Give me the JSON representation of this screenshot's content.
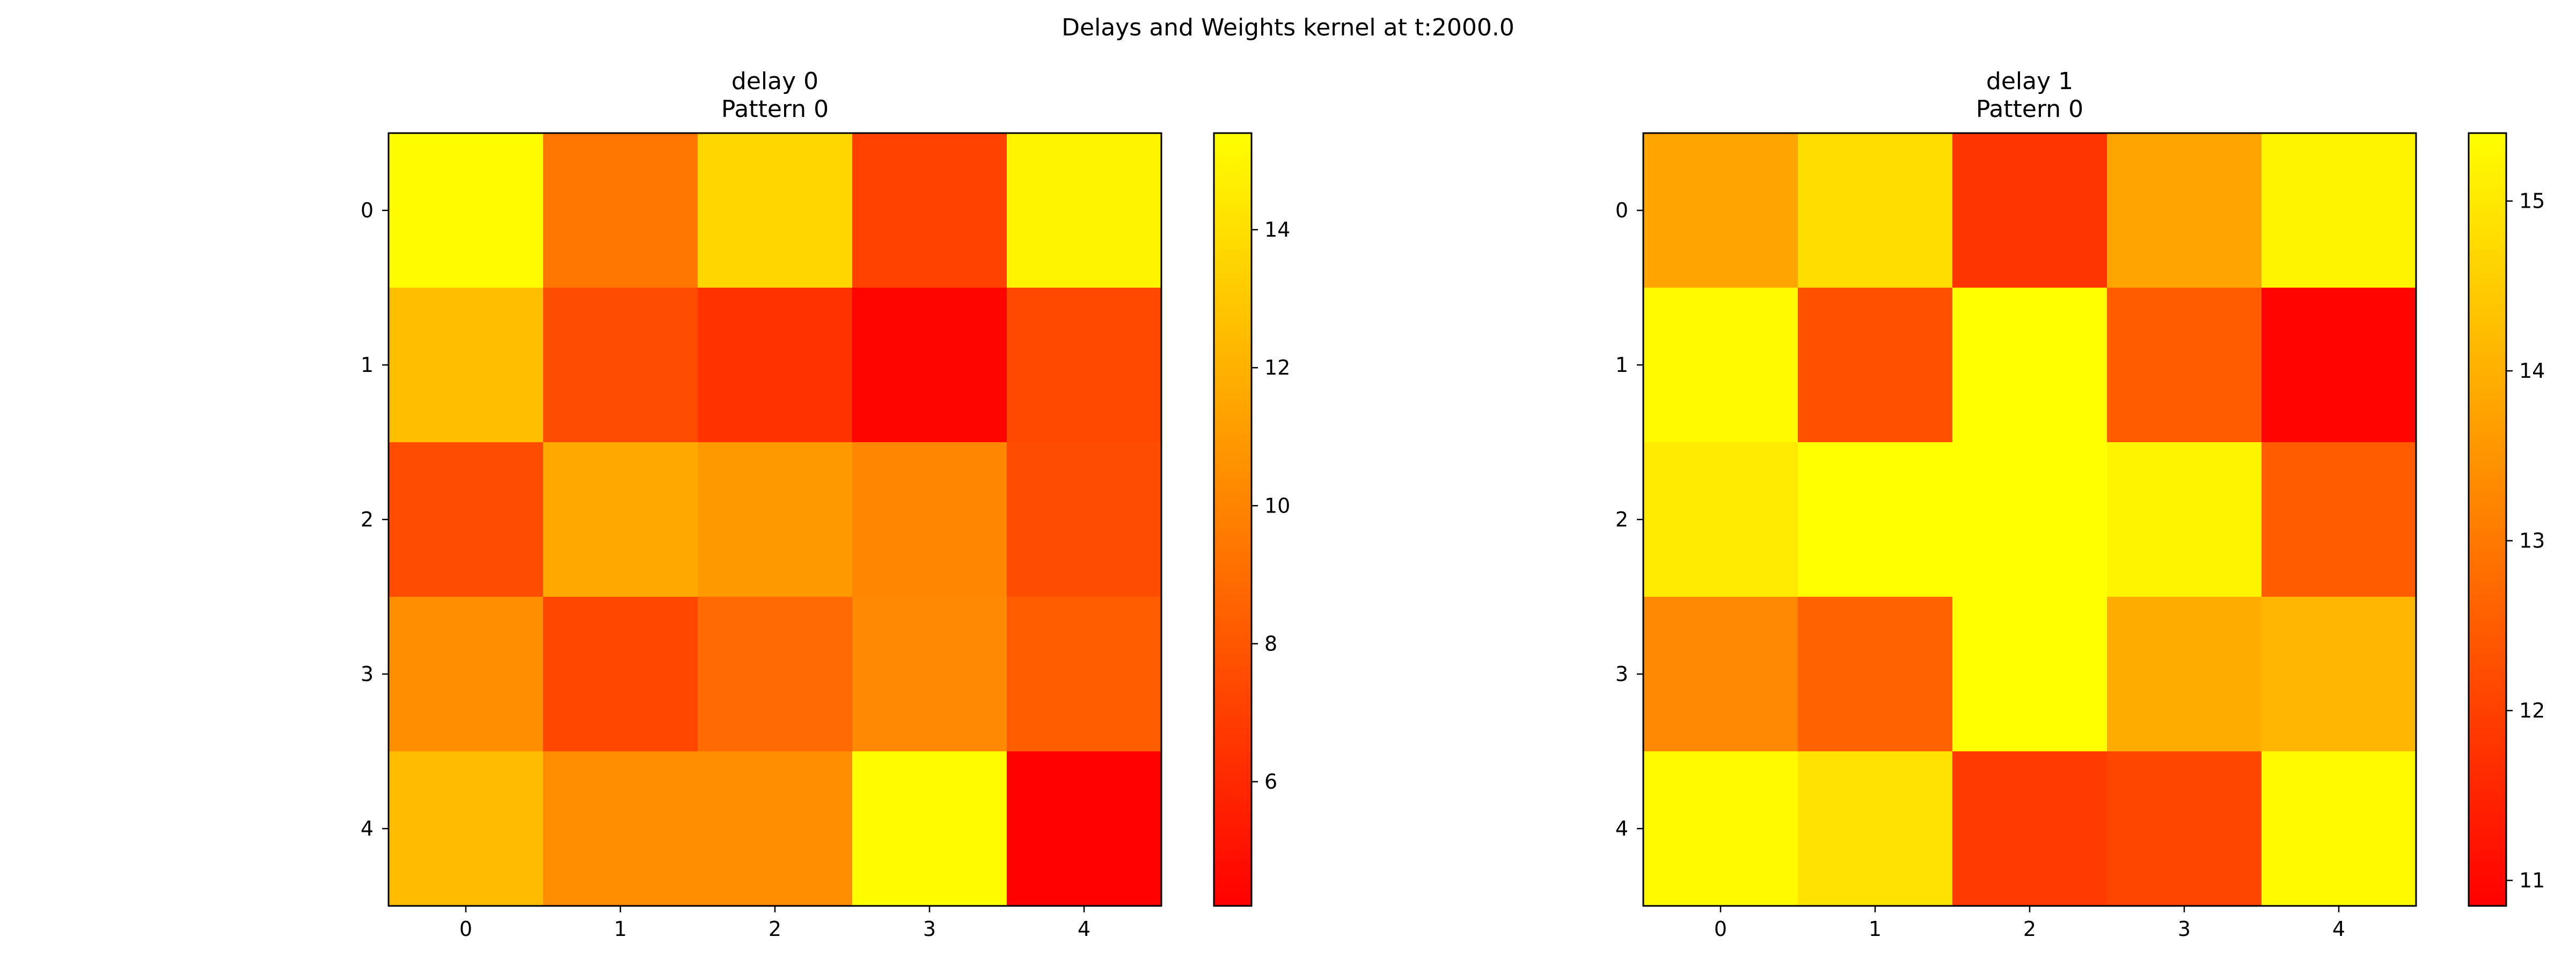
{
  "figure_title": "Delays and Weights kernel at t:2000.0",
  "chart_data": [
    {
      "type": "heatmap",
      "title_lines": [
        "delay 0",
        "Pattern 0"
      ],
      "x_ticks": [
        "0",
        "1",
        "2",
        "3",
        "4"
      ],
      "y_ticks": [
        "0",
        "1",
        "2",
        "3",
        "4"
      ],
      "colormap": "autumn",
      "vmin": 4.2,
      "vmax": 15.4,
      "colorbar_ticks": [
        {
          "value": 6,
          "label": "6"
        },
        {
          "value": 8,
          "label": "8"
        },
        {
          "value": 10,
          "label": "10"
        },
        {
          "value": 12,
          "label": "12"
        },
        {
          "value": 14,
          "label": "14"
        }
      ],
      "values": [
        [
          15.3,
          9.4,
          13.6,
          7.1,
          14.9
        ],
        [
          12.6,
          7.6,
          6.4,
          4.4,
          7.4
        ],
        [
          7.6,
          11.6,
          10.9,
          10.1,
          7.6
        ],
        [
          10.5,
          7.3,
          8.9,
          10.2,
          8.3
        ],
        [
          12.4,
          10.4,
          10.4,
          15.3,
          4.3
        ]
      ]
    },
    {
      "type": "heatmap",
      "title_lines": [
        "delay 1",
        "Pattern 0"
      ],
      "x_ticks": [
        "0",
        "1",
        "2",
        "3",
        "4"
      ],
      "y_ticks": [
        "0",
        "1",
        "2",
        "3",
        "4"
      ],
      "colormap": "autumn",
      "vmin": 10.85,
      "vmax": 15.4,
      "colorbar_ticks": [
        {
          "value": 11,
          "label": "11"
        },
        {
          "value": 12,
          "label": "12"
        },
        {
          "value": 13,
          "label": "13"
        },
        {
          "value": 14,
          "label": "14"
        },
        {
          "value": 15,
          "label": "15"
        }
      ],
      "values": [
        [
          13.8,
          14.8,
          11.8,
          13.8,
          15.2
        ],
        [
          15.3,
          12.3,
          15.4,
          12.5,
          10.9
        ],
        [
          15.0,
          15.4,
          15.4,
          15.2,
          12.5
        ],
        [
          13.3,
          12.6,
          15.4,
          13.9,
          14.1
        ],
        [
          15.3,
          14.9,
          11.9,
          12.1,
          15.3
        ]
      ]
    }
  ]
}
